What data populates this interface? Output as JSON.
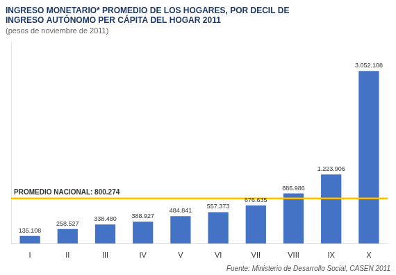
{
  "chart_data": {
    "type": "bar",
    "title": [
      "INGRESO MONETARIO* PROMEDIO DE LOS HOGARES, POR DECIL DE",
      "INGRESO AUTÓNOMO PER CÁPITA DEL HOGAR 2011"
    ],
    "subtitle": "(pesos de noviembre de 2011)",
    "categories": [
      "I",
      "II",
      "III",
      "IV",
      "V",
      "VI",
      "VII",
      "VIII",
      "IX",
      "X"
    ],
    "values": [
      135108,
      258527,
      338480,
      388927,
      484841,
      557373,
      676635,
      886986,
      1223906,
      3052108
    ],
    "value_labels": [
      "135.108",
      "258.527",
      "338.480",
      "388.927",
      "484.841",
      "557.373",
      "676.635",
      "886.986",
      "1.223.906",
      "3.052.108"
    ],
    "color": "#4472C4",
    "data_labels": true,
    "ylim": [
      0,
      3570966.36
    ],
    "tick_labels": "x",
    "grid": false,
    "annotations": [
      {
        "type": "hline",
        "value": 800274,
        "label": "PROMEDIO NACIONAL: 800.274",
        "color": "#FFC000"
      },
      {
        "type": "text",
        "text": "Fuente: Ministerio de Desarrollo Social, CASEN 2011"
      }
    ]
  }
}
